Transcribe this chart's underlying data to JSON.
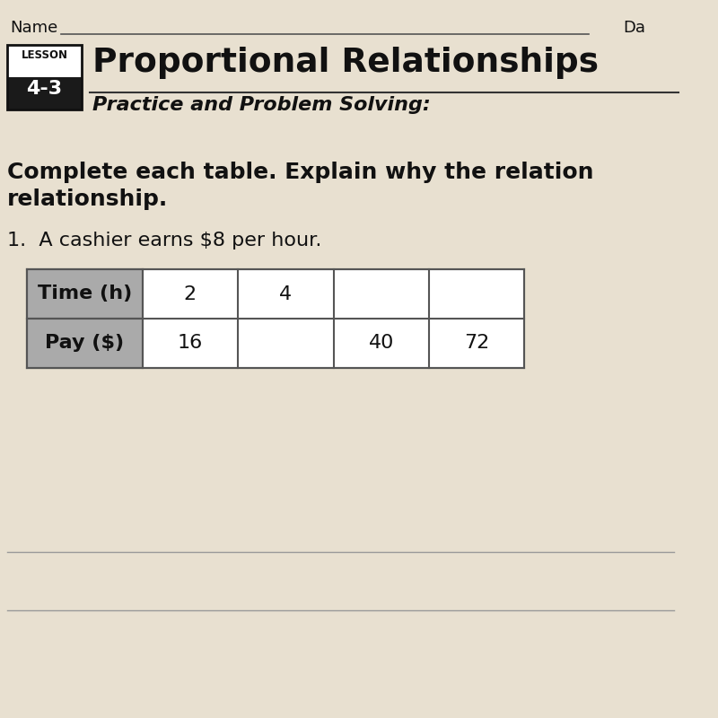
{
  "page_bg": "#e8e0d0",
  "lesson_box_border": "#111111",
  "lesson_box_top_bg": "#ffffff",
  "lesson_box_bottom_bg": "#1a1a1a",
  "lesson_label": "LESSON",
  "lesson_number": "4-3",
  "title": "Proportional Relationships",
  "subtitle": "Practice and Problem Solving:",
  "instruction_line1": "Complete each table. Explain why the relation",
  "instruction_line2": "relationship.",
  "problem_number": "1.",
  "problem_text": "A cashier earns $8 per hour.",
  "name_label": "Name",
  "date_label": "Da",
  "table_header_bg": "#aaaaaa",
  "table_border_color": "#555555",
  "table_row_labels": [
    "Time (h)",
    "Pay ($)"
  ],
  "row1_data": [
    "2",
    "4",
    "",
    ""
  ],
  "row2_data": [
    "16",
    "",
    "40",
    "72"
  ],
  "line_color": "#999999",
  "name_line_color": "#555555",
  "text_color": "#111111"
}
